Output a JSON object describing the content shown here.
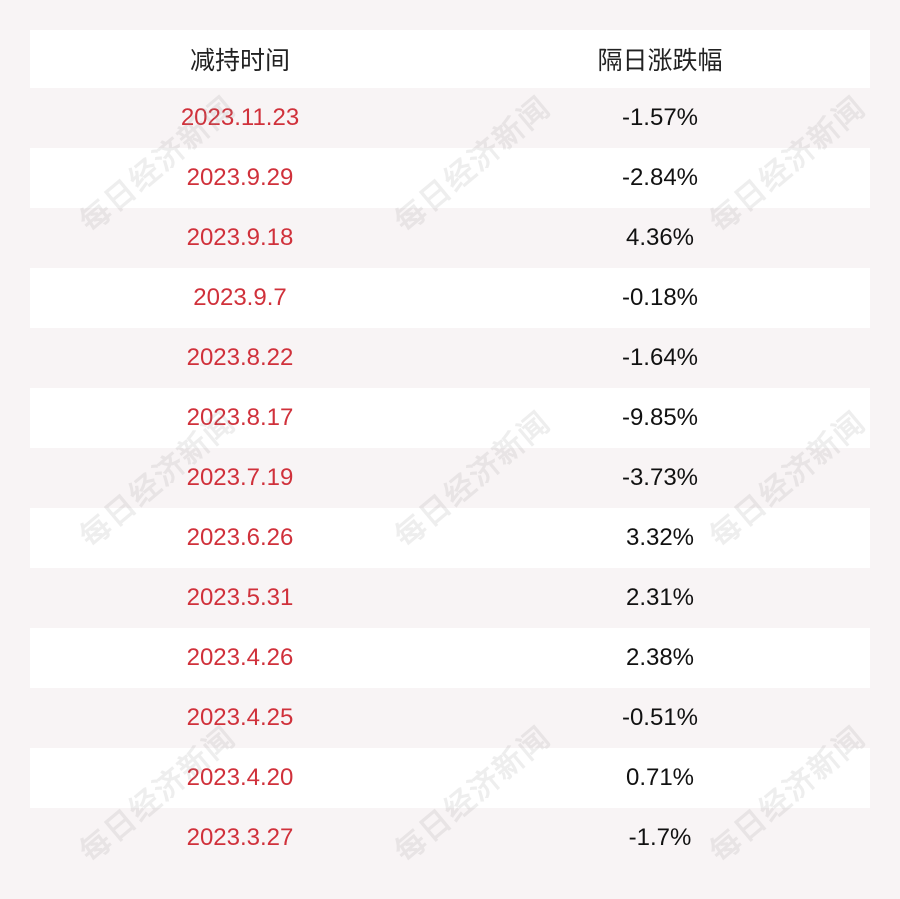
{
  "table": {
    "headers": {
      "date": "减持时间",
      "change": "隔日涨跌幅"
    },
    "rows": [
      {
        "date": "2023.11.23",
        "change": "-1.57%"
      },
      {
        "date": "2023.9.29",
        "change": "-2.84%"
      },
      {
        "date": "2023.9.18",
        "change": "4.36%"
      },
      {
        "date": "2023.9.7",
        "change": "-0.18%"
      },
      {
        "date": "2023.8.22",
        "change": "-1.64%"
      },
      {
        "date": "2023.8.17",
        "change": "-9.85%"
      },
      {
        "date": "2023.7.19",
        "change": "-3.73%"
      },
      {
        "date": "2023.6.26",
        "change": "3.32%"
      },
      {
        "date": "2023.5.31",
        "change": "2.31%"
      },
      {
        "date": "2023.4.26",
        "change": "2.38%"
      },
      {
        "date": "2023.4.25",
        "change": "-0.51%"
      },
      {
        "date": "2023.4.20",
        "change": "0.71%"
      },
      {
        "date": "2023.3.27",
        "change": "-1.7%"
      }
    ]
  },
  "watermark": {
    "text": "每日经济新闻"
  },
  "colors": {
    "background": "#f8f4f5",
    "row_alt": "#ffffff",
    "date_text": "#d0313b",
    "change_text": "#111111"
  }
}
